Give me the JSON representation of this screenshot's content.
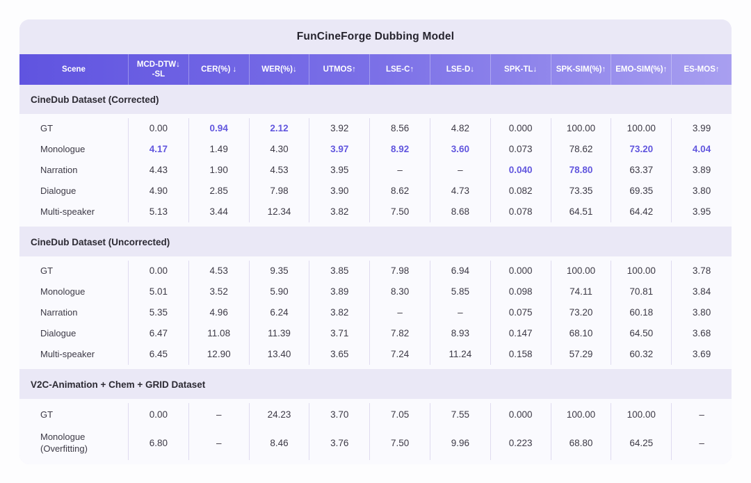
{
  "title": "FunCineForge Dubbing Model",
  "colors": {
    "card_background": "#eae8f6",
    "header_gradient_left": "#6054e0",
    "header_gradient_right": "#a89ff0",
    "header_text": "#ffffff",
    "row_background": "#fafafe",
    "cell_text": "#3c3945",
    "accent_highlight": "#6156de",
    "column_divider": "#dfdbf0"
  },
  "chart_data": {
    "type": "table",
    "title": "FunCineForge Dubbing Model",
    "columns": [
      {
        "label": "Scene"
      },
      {
        "label": "MCD-DTW↓\n-SL"
      },
      {
        "label": "CER(%) ↓"
      },
      {
        "label": "WER(%)↓"
      },
      {
        "label": "UTMOS↑"
      },
      {
        "label": "LSE-C↑"
      },
      {
        "label": "LSE-D↓"
      },
      {
        "label": "SPK-TL↓"
      },
      {
        "label": "SPK-SIM(%)↑"
      },
      {
        "label": "EMO-SIM(%)↑"
      },
      {
        "label": "ES-MOS↑"
      }
    ],
    "sections": [
      {
        "title": "CineDub Dataset (Corrected)",
        "rows": [
          {
            "scene": "GT",
            "values": [
              "0.00",
              "0.94",
              "2.12",
              "3.92",
              "8.56",
              "4.82",
              "0.000",
              "100.00",
              "100.00",
              "3.99"
            ],
            "highlight": [
              1,
              2
            ]
          },
          {
            "scene": "Monologue",
            "values": [
              "4.17",
              "1.49",
              "4.30",
              "3.97",
              "8.92",
              "3.60",
              "0.073",
              "78.62",
              "73.20",
              "4.04"
            ],
            "highlight": [
              0,
              3,
              4,
              5,
              8,
              9
            ]
          },
          {
            "scene": "Narration",
            "values": [
              "4.43",
              "1.90",
              "4.53",
              "3.95",
              "–",
              "–",
              "0.040",
              "78.80",
              "63.37",
              "3.89"
            ],
            "highlight": [
              6,
              7
            ]
          },
          {
            "scene": "Dialogue",
            "values": [
              "4.90",
              "2.85",
              "7.98",
              "3.90",
              "8.62",
              "4.73",
              "0.082",
              "73.35",
              "69.35",
              "3.80"
            ],
            "highlight": []
          },
          {
            "scene": "Multi-speaker",
            "values": [
              "5.13",
              "3.44",
              "12.34",
              "3.82",
              "7.50",
              "8.68",
              "0.078",
              "64.51",
              "64.42",
              "3.95"
            ],
            "highlight": []
          }
        ]
      },
      {
        "title": "CineDub Dataset (Uncorrected)",
        "rows": [
          {
            "scene": "GT",
            "values": [
              "0.00",
              "4.53",
              "9.35",
              "3.85",
              "7.98",
              "6.94",
              "0.000",
              "100.00",
              "100.00",
              "3.78"
            ],
            "highlight": []
          },
          {
            "scene": "Monologue",
            "values": [
              "5.01",
              "3.52",
              "5.90",
              "3.89",
              "8.30",
              "5.85",
              "0.098",
              "74.11",
              "70.81",
              "3.84"
            ],
            "highlight": []
          },
          {
            "scene": "Narration",
            "values": [
              "5.35",
              "4.96",
              "6.24",
              "3.82",
              "–",
              "–",
              "0.075",
              "73.20",
              "60.18",
              "3.80"
            ],
            "highlight": []
          },
          {
            "scene": "Dialogue",
            "values": [
              "6.47",
              "11.08",
              "11.39",
              "3.71",
              "7.82",
              "8.93",
              "0.147",
              "68.10",
              "64.50",
              "3.68"
            ],
            "highlight": []
          },
          {
            "scene": "Multi-speaker",
            "values": [
              "6.45",
              "12.90",
              "13.40",
              "3.65",
              "7.24",
              "11.24",
              "0.158",
              "57.29",
              "60.32",
              "3.69"
            ],
            "highlight": []
          }
        ]
      },
      {
        "title": "V2C-Animation + Chem + GRID Dataset",
        "rows": [
          {
            "scene": "GT",
            "values": [
              "0.00",
              "–",
              "24.23",
              "3.70",
              "7.05",
              "7.55",
              "0.000",
              "100.00",
              "100.00",
              "–"
            ],
            "highlight": []
          },
          {
            "scene": "Monologue\n(Overfitting)",
            "values": [
              "6.80",
              "–",
              "8.46",
              "3.76",
              "7.50",
              "9.96",
              "0.223",
              "68.80",
              "64.25",
              "–"
            ],
            "highlight": []
          }
        ]
      }
    ]
  }
}
